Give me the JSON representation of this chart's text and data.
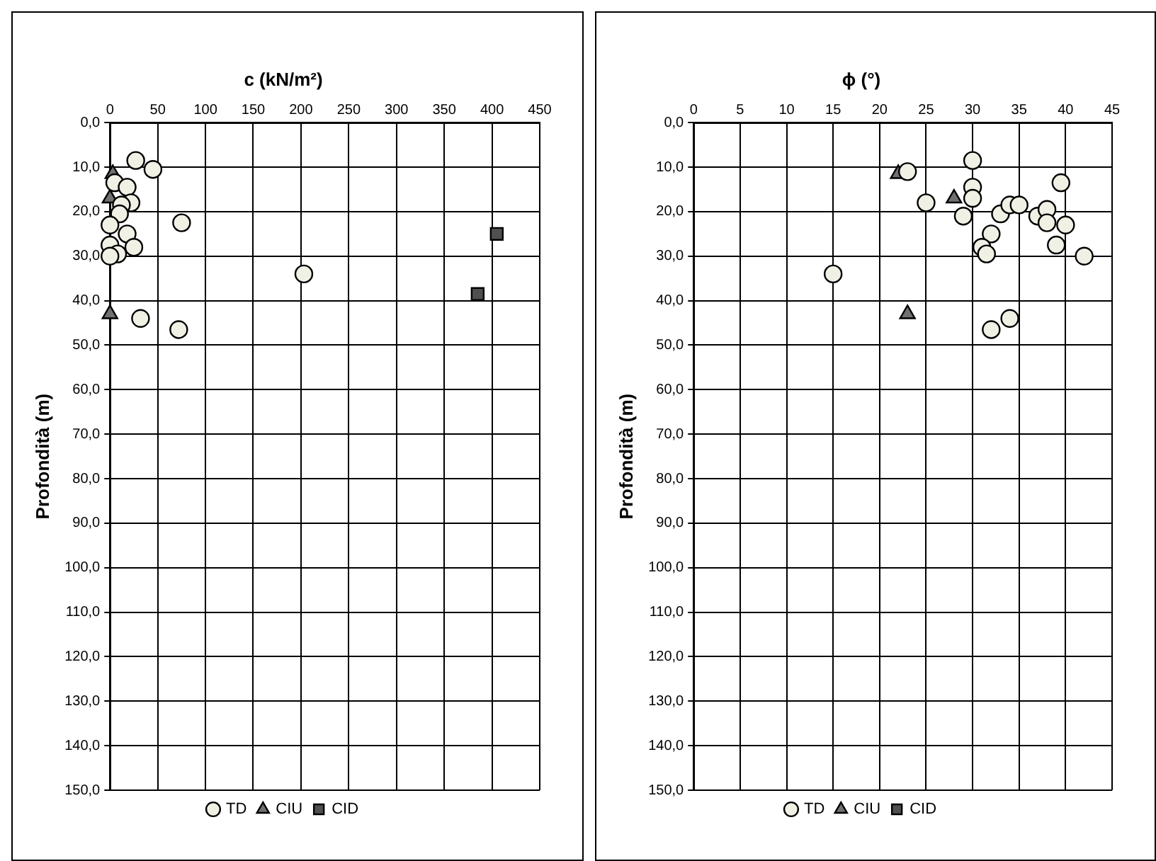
{
  "chart_data": [
    {
      "type": "scatter",
      "title": "c (kN/m²)",
      "ylabel": "Profondità (m)",
      "legend": "bottom",
      "grid": true,
      "xlim": [
        0,
        450
      ],
      "xticks": [
        0,
        50,
        100,
        150,
        200,
        250,
        300,
        350,
        400,
        450
      ],
      "ylim": [
        150,
        0
      ],
      "yticks": [
        {
          "value": 0,
          "label": "0,0"
        },
        {
          "value": 10,
          "label": "10,0"
        },
        {
          "value": 20,
          "label": "20,0"
        },
        {
          "value": 30,
          "label": "30,0"
        },
        {
          "value": 40,
          "label": "40,0"
        },
        {
          "value": 50,
          "label": "50,0"
        },
        {
          "value": 60,
          "label": "60,0"
        },
        {
          "value": 70,
          "label": "70,0"
        },
        {
          "value": 80,
          "label": "80,0"
        },
        {
          "value": 90,
          "label": "90,0"
        },
        {
          "value": 100,
          "label": "100,0"
        },
        {
          "value": 110,
          "label": "110,0"
        },
        {
          "value": 120,
          "label": "120,0"
        },
        {
          "value": 130,
          "label": "130,0"
        },
        {
          "value": 140,
          "label": "140,0"
        },
        {
          "value": 150,
          "label": "150,0"
        }
      ],
      "series": [
        {
          "name": "TD",
          "color": "#f0f0e4",
          "marker": "circle",
          "x": [
            27,
            45,
            5,
            18,
            22,
            12,
            10,
            0,
            18,
            0,
            25,
            8,
            0,
            75,
            203,
            32,
            72
          ],
          "values": [
            8.5,
            10.5,
            13.5,
            14.5,
            18,
            18.5,
            20.5,
            23,
            25,
            27.5,
            28,
            29.5,
            30,
            22.5,
            34,
            44,
            46.5
          ]
        },
        {
          "name": "CIU",
          "color": "#707070",
          "marker": "triangle",
          "x": [
            3,
            0,
            0
          ],
          "values": [
            11.5,
            17,
            43
          ]
        },
        {
          "name": "CID",
          "color": "#505050",
          "marker": "square",
          "x": [
            405,
            385
          ],
          "values": [
            25,
            38.5
          ]
        }
      ]
    },
    {
      "type": "scatter",
      "title": "ϕ (°)",
      "ylabel": "Profondità (m)",
      "legend": "bottom",
      "grid": true,
      "xlim": [
        0,
        45
      ],
      "xticks": [
        0,
        5,
        10,
        15,
        20,
        25,
        30,
        35,
        40,
        45
      ],
      "ylim": [
        150,
        0
      ],
      "yticks": [
        {
          "value": 0,
          "label": "0,0"
        },
        {
          "value": 10,
          "label": "10,0"
        },
        {
          "value": 20,
          "label": "20,0"
        },
        {
          "value": 30,
          "label": "30,0"
        },
        {
          "value": 40,
          "label": "40,0"
        },
        {
          "value": 50,
          "label": "50,0"
        },
        {
          "value": 60,
          "label": "60,0"
        },
        {
          "value": 70,
          "label": "70,0"
        },
        {
          "value": 80,
          "label": "80,0"
        },
        {
          "value": 90,
          "label": "90,0"
        },
        {
          "value": 100,
          "label": "100,0"
        },
        {
          "value": 110,
          "label": "110,0"
        },
        {
          "value": 120,
          "label": "120,0"
        },
        {
          "value": 130,
          "label": "130,0"
        },
        {
          "value": 140,
          "label": "140,0"
        },
        {
          "value": 150,
          "label": "150,0"
        }
      ],
      "series": [
        {
          "name": "TD",
          "color": "#f0f0e4",
          "marker": "circle",
          "x": [
            23,
            30,
            25,
            30,
            30,
            29,
            33,
            34,
            35,
            32,
            31,
            31.5,
            37,
            38,
            38,
            40,
            39.5,
            39,
            42,
            15,
            32,
            34
          ],
          "values": [
            11,
            8.5,
            18,
            14.5,
            17,
            21,
            20.5,
            18.5,
            18.5,
            25,
            28,
            29.5,
            21,
            19.5,
            22.5,
            23,
            13.5,
            27.5,
            30,
            34,
            46.5,
            44
          ]
        },
        {
          "name": "CIU",
          "color": "#707070",
          "marker": "triangle",
          "x": [
            22,
            28,
            23
          ],
          "values": [
            11.5,
            17,
            43
          ]
        },
        {
          "name": "CID",
          "color": "#505050",
          "marker": "square"
        }
      ]
    }
  ]
}
